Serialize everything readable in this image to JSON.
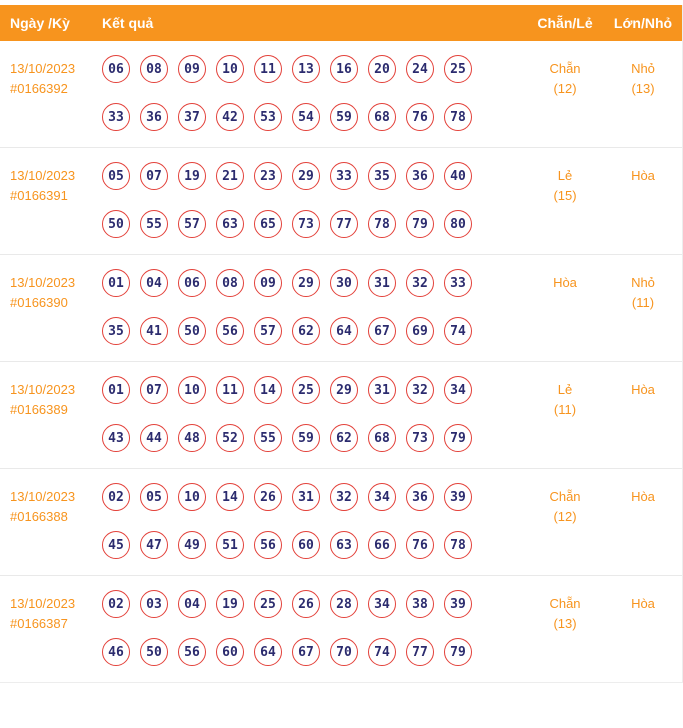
{
  "header": {
    "col_date": "Ngày /Kỳ",
    "col_result": "Kết quả",
    "col_even_odd": "Chẵn/Lẻ",
    "col_big_small": "Lớn/Nhỏ"
  },
  "accent_colors": {
    "header_bg": "#F7941E",
    "ball_border": "#E3413A",
    "ball_text": "#2B2B6E",
    "orange_text": "#F7941E"
  },
  "rows": [
    {
      "date": "13/10/2023",
      "period": "#0166392",
      "numbers": [
        "06",
        "08",
        "09",
        "10",
        "11",
        "13",
        "16",
        "20",
        "24",
        "25",
        "33",
        "36",
        "37",
        "42",
        "53",
        "54",
        "59",
        "68",
        "76",
        "78"
      ],
      "even_odd": {
        "label": "Chẵn",
        "count": "(12)"
      },
      "big_small": {
        "label": "Nhỏ",
        "count": "(13)"
      }
    },
    {
      "date": "13/10/2023",
      "period": "#0166391",
      "numbers": [
        "05",
        "07",
        "19",
        "21",
        "23",
        "29",
        "33",
        "35",
        "36",
        "40",
        "50",
        "55",
        "57",
        "63",
        "65",
        "73",
        "77",
        "78",
        "79",
        "80"
      ],
      "even_odd": {
        "label": "Lẻ",
        "count": "(15)"
      },
      "big_small": {
        "label": "Hòa",
        "count": ""
      }
    },
    {
      "date": "13/10/2023",
      "period": "#0166390",
      "numbers": [
        "01",
        "04",
        "06",
        "08",
        "09",
        "29",
        "30",
        "31",
        "32",
        "33",
        "35",
        "41",
        "50",
        "56",
        "57",
        "62",
        "64",
        "67",
        "69",
        "74"
      ],
      "even_odd": {
        "label": "Hòa",
        "count": ""
      },
      "big_small": {
        "label": "Nhỏ",
        "count": "(11)"
      }
    },
    {
      "date": "13/10/2023",
      "period": "#0166389",
      "numbers": [
        "01",
        "07",
        "10",
        "11",
        "14",
        "25",
        "29",
        "31",
        "32",
        "34",
        "43",
        "44",
        "48",
        "52",
        "55",
        "59",
        "62",
        "68",
        "73",
        "79"
      ],
      "even_odd": {
        "label": "Lẻ",
        "count": "(11)"
      },
      "big_small": {
        "label": "Hòa",
        "count": ""
      }
    },
    {
      "date": "13/10/2023",
      "period": "#0166388",
      "numbers": [
        "02",
        "05",
        "10",
        "14",
        "26",
        "31",
        "32",
        "34",
        "36",
        "39",
        "45",
        "47",
        "49",
        "51",
        "56",
        "60",
        "63",
        "66",
        "76",
        "78"
      ],
      "even_odd": {
        "label": "Chẵn",
        "count": "(12)"
      },
      "big_small": {
        "label": "Hòa",
        "count": ""
      }
    },
    {
      "date": "13/10/2023",
      "period": "#0166387",
      "numbers": [
        "02",
        "03",
        "04",
        "19",
        "25",
        "26",
        "28",
        "34",
        "38",
        "39",
        "46",
        "50",
        "56",
        "60",
        "64",
        "67",
        "70",
        "74",
        "77",
        "79"
      ],
      "even_odd": {
        "label": "Chẵn",
        "count": "(13)"
      },
      "big_small": {
        "label": "Hòa",
        "count": ""
      }
    }
  ]
}
